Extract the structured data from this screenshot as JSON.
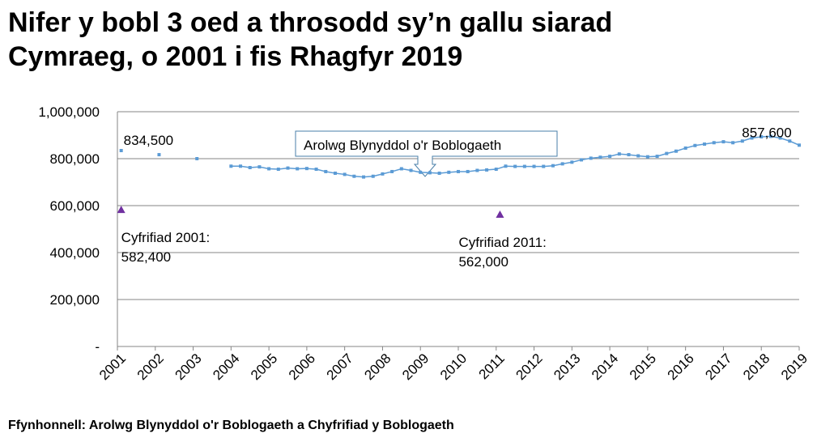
{
  "chart_data": {
    "type": "line",
    "title": [
      "Nifer y bobl 3 oed a throsodd sy’n gallu siarad",
      "Cymraeg, o 2001 i fis Rhagfyr 2019"
    ],
    "source": "Ffynhonnell: Arolwg Blynyddol o'r Boblogaeth a Chyfrifiad y Boblogaeth",
    "xlim": [
      2001,
      2019
    ],
    "xticks": [
      2001,
      2002,
      2003,
      2004,
      2005,
      2006,
      2007,
      2008,
      2009,
      2010,
      2011,
      2012,
      2013,
      2014,
      2015,
      2016,
      2017,
      2018,
      2019
    ],
    "ylim": [
      0,
      1000000
    ],
    "yticks": [
      {
        "value": 0,
        "label": "-"
      },
      {
        "value": 200000,
        "label": "200,000"
      },
      {
        "value": 400000,
        "label": "400,000"
      },
      {
        "value": 600000,
        "label": "600,000"
      },
      {
        "value": 800000,
        "label": "800,000"
      },
      {
        "value": 1000000,
        "label": "1,000,000"
      }
    ],
    "grid": true,
    "series": [
      {
        "name": "Arolwg Blynyddol o'r Boblogaeth",
        "color": "#5b9bd5",
        "marker": "square",
        "x": [
          2001.1,
          2001.6,
          2002.1,
          2002.6,
          2003.1,
          2003.55,
          2004,
          2004.25,
          2004.5,
          2004.75,
          2005,
          2005.25,
          2005.5,
          2005.75,
          2006,
          2006.25,
          2006.5,
          2006.75,
          2007,
          2007.25,
          2007.5,
          2007.75,
          2008,
          2008.25,
          2008.5,
          2008.75,
          2009,
          2009.25,
          2009.5,
          2009.75,
          2010,
          2010.25,
          2010.5,
          2010.75,
          2011,
          2011.25,
          2011.5,
          2011.75,
          2012,
          2012.25,
          2012.5,
          2012.75,
          2013,
          2013.25,
          2013.5,
          2013.75,
          2014,
          2014.25,
          2014.5,
          2014.75,
          2015,
          2015.25,
          2015.5,
          2015.75,
          2016,
          2016.25,
          2016.5,
          2016.75,
          2017,
          2017.25,
          2017.5,
          2017.75,
          2018,
          2018.25,
          2018.5,
          2018.75,
          2019
        ],
        "values": [
          834500,
          null,
          817000,
          null,
          800000,
          null,
          768000,
          768000,
          762000,
          765000,
          757000,
          755000,
          760000,
          757000,
          758000,
          755000,
          745000,
          738000,
          733000,
          725000,
          722000,
          725000,
          735000,
          745000,
          757000,
          750000,
          742000,
          740000,
          738000,
          742000,
          745000,
          745000,
          750000,
          752000,
          755000,
          768000,
          767000,
          767000,
          767000,
          767000,
          770000,
          778000,
          785000,
          795000,
          802000,
          806000,
          810000,
          820000,
          817000,
          812000,
          808000,
          810000,
          822000,
          832000,
          845000,
          856000,
          862000,
          868000,
          872000,
          868000,
          875000,
          888000,
          893000,
          895000,
          888000,
          875000,
          857600
        ],
        "value_labels": [
          "834,500",
          null,
          null,
          null,
          null,
          null,
          null,
          null,
          null,
          null,
          null,
          null,
          null,
          null,
          null,
          null,
          null,
          null,
          null,
          null,
          null,
          null,
          null,
          null,
          null,
          null,
          null,
          null,
          null,
          null,
          null,
          null,
          null,
          null,
          null,
          null,
          null,
          null,
          null,
          null,
          null,
          null,
          null,
          null,
          null,
          null,
          null,
          null,
          null,
          null,
          null,
          null,
          null,
          null,
          null,
          null,
          null,
          null,
          null,
          null,
          null,
          null,
          null,
          null,
          null,
          null,
          "857,600"
        ]
      },
      {
        "color": "#7030a0",
        "marker": "triangle",
        "x": [
          2001.1,
          2011.1
        ],
        "values": [
          582400,
          562000
        ],
        "point_names": [
          "Cyfrifiad 2001:",
          "Cyfrifiad 2011:"
        ],
        "value_labels": [
          "582,400",
          "562,000"
        ]
      }
    ]
  }
}
